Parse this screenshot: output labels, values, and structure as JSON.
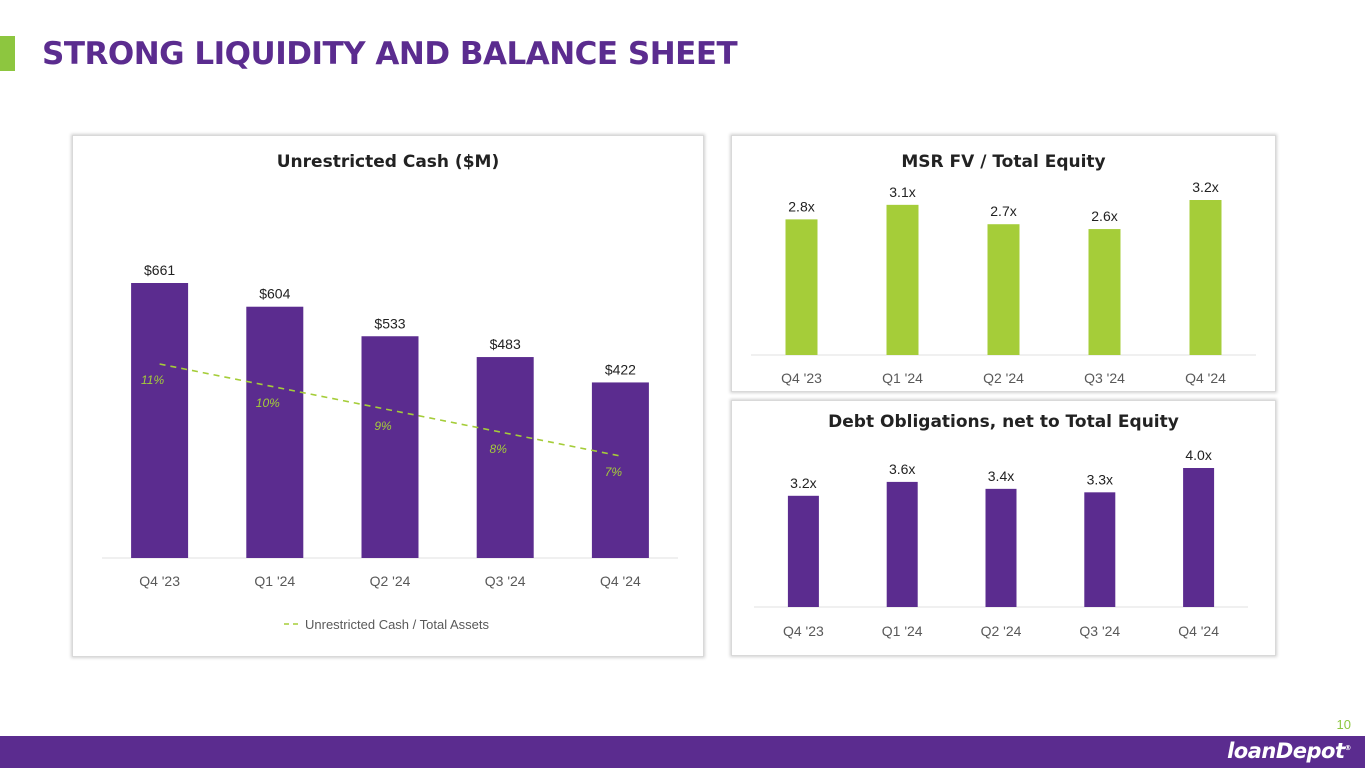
{
  "page": {
    "title": "STRONG LIQUIDITY AND BALANCE SHEET",
    "page_number": "10",
    "logo_text": "loanDepot",
    "colors": {
      "purple": "#5b2c8f",
      "green": "#a5cd39",
      "text": "#222222",
      "axis": "#595959"
    }
  },
  "chart_data": [
    {
      "type": "bar",
      "title": "Unrestricted Cash ($M)",
      "categories": [
        "Q4 '23",
        "Q1 '24",
        "Q2 '24",
        "Q3 '24",
        "Q4 '24"
      ],
      "series": [
        {
          "values": [
            661,
            604,
            533,
            483,
            422
          ],
          "labels": [
            "$661",
            "$604",
            "$533",
            "$483",
            "$422"
          ],
          "color": "#5b2c8f"
        },
        {
          "name": "Unrestricted Cash / Total Assets",
          "type": "line",
          "style": "dashed",
          "values": [
            11,
            10,
            9,
            8,
            7
          ],
          "labels": [
            "11%",
            "10%",
            "9%",
            "8%",
            "7%"
          ],
          "color": "#a5cd39"
        }
      ],
      "legend": "bottom",
      "grid": false
    },
    {
      "type": "bar",
      "title": "MSR FV / Total Equity",
      "categories": [
        "Q4 '23",
        "Q1 '24",
        "Q2 '24",
        "Q3 '24",
        "Q4 '24"
      ],
      "series": [
        {
          "values": [
            2.8,
            3.1,
            2.7,
            2.6,
            3.2
          ],
          "labels": [
            "2.8x",
            "3.1x",
            "2.7x",
            "2.6x",
            "3.2x"
          ],
          "color": "#a5cd39"
        }
      ],
      "grid": false
    },
    {
      "type": "bar",
      "title": "Debt Obligations, net to Total Equity",
      "categories": [
        "Q4 '23",
        "Q1 '24",
        "Q2 '24",
        "Q3 '24",
        "Q4 '24"
      ],
      "series": [
        {
          "values": [
            3.2,
            3.6,
            3.4,
            3.3,
            4.0
          ],
          "labels": [
            "3.2x",
            "3.6x",
            "3.4x",
            "3.3x",
            "4.0x"
          ],
          "color": "#5b2c8f"
        }
      ],
      "grid": false
    }
  ]
}
